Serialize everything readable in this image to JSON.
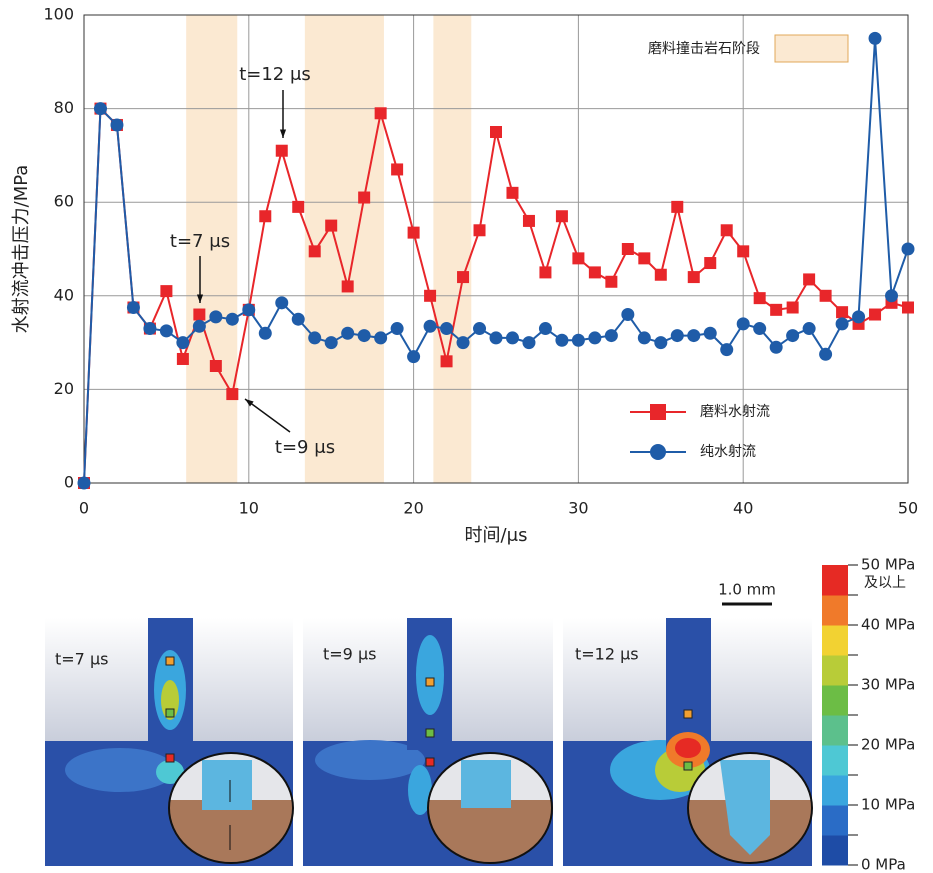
{
  "chart_data": {
    "type": "line",
    "x_label": "时间/μs",
    "y_label": "水射流冲击压力/MPa",
    "x": [
      0,
      1,
      2,
      3,
      4,
      5,
      6,
      7,
      8,
      9,
      10,
      11,
      12,
      13,
      14,
      15,
      16,
      17,
      18,
      19,
      20,
      21,
      22,
      23,
      24,
      25,
      26,
      27,
      28,
      29,
      30,
      31,
      32,
      33,
      34,
      35,
      36,
      37,
      38,
      39,
      40,
      41,
      42,
      43,
      44,
      45,
      46,
      47,
      48,
      49,
      50
    ],
    "series": [
      {
        "name": "磨料水射流",
        "color": "#e8262a",
        "marker": "square",
        "values": [
          0,
          80,
          76.5,
          37.5,
          33,
          41,
          26.5,
          36,
          25,
          19,
          37,
          57,
          71,
          59,
          49.5,
          55,
          42,
          61,
          79,
          67,
          53.5,
          40,
          26,
          44,
          54,
          75,
          62,
          56,
          45,
          57,
          48,
          45,
          43,
          50,
          48,
          44.5,
          59,
          44,
          47,
          54,
          49.5,
          39.5,
          37,
          37.5,
          43.5,
          40,
          36.5,
          34,
          36,
          38.5,
          37.5
        ]
      },
      {
        "name": "纯水射流",
        "color": "#1f5ca8",
        "marker": "circle",
        "values": [
          0,
          80,
          76.5,
          37.5,
          33,
          32.5,
          30,
          33.5,
          35.5,
          35,
          37,
          32,
          38.5,
          35,
          31,
          30,
          32,
          31.5,
          31,
          33,
          27,
          33.5,
          33,
          30,
          33,
          31,
          31,
          30,
          33,
          30.5,
          30.5,
          31,
          31.5,
          36,
          31,
          30,
          31.5,
          31.5,
          32,
          28.5,
          34,
          33,
          29,
          31.5,
          33,
          27.5,
          34,
          35.5,
          95,
          40,
          50
        ]
      }
    ],
    "xlim": [
      0,
      50
    ],
    "ylim": [
      0,
      100
    ],
    "xticks": [
      0,
      10,
      20,
      30,
      40,
      50
    ],
    "yticks": [
      0,
      20,
      40,
      60,
      80,
      100
    ],
    "grid": true,
    "bands": [
      [
        6.2,
        9.3
      ],
      [
        13.4,
        18.2
      ],
      [
        21.2,
        23.5
      ]
    ],
    "band_color": "#fbe9d2",
    "band_label": "磨料撞击岩石阶段",
    "annotations": [
      "t=12 μs",
      "t=7 μs",
      "t=9 μs"
    ],
    "legend": "lower right"
  },
  "panels": [
    {
      "label": "t=7 μs"
    },
    {
      "label": "t=9 μs"
    },
    {
      "label": "t=12 μs"
    }
  ],
  "scale_bar": "1.0 mm",
  "colorbar": {
    "lim": [
      0,
      50
    ],
    "ticks": [
      {
        "value": 50,
        "label": "50 MPa"
      },
      {
        "value": 40,
        "label": "40 MPa"
      },
      {
        "value": 30,
        "label": "30 MPa"
      },
      {
        "value": 20,
        "label": "20 MPa"
      },
      {
        "value": 10,
        "label": "10 MPa"
      },
      {
        "value": 0,
        "label": "0  MPa"
      }
    ],
    "minor_ticks": [
      5,
      15,
      25,
      35,
      45
    ],
    "top_note": "及以上",
    "colors": [
      "#1e4ca6",
      "#2a6cc6",
      "#3aa6de",
      "#4ec8d4",
      "#5cc08c",
      "#6cbd45",
      "#b8cc38",
      "#f2d232",
      "#f07a2a",
      "#e62a24"
    ]
  }
}
